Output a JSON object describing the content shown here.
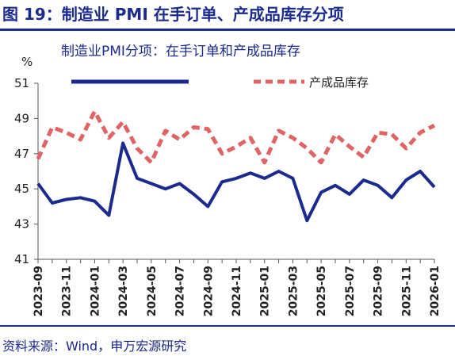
{
  "header": {
    "title": "图 19：制造业 PMI 在手订单、产成品库存分项",
    "source": "资料来源：Wind，申万宏源研究"
  },
  "colors": {
    "primary": "#1b2a8c",
    "dashed": "#e06366"
  },
  "chart_data": {
    "type": "line",
    "title": "制造业PMI分项：在手订单和产成品库存",
    "ylabel": "%",
    "ylim": [
      41,
      51
    ],
    "yticks": [
      41,
      43,
      45,
      47,
      49,
      51
    ],
    "grid": false,
    "legend_position": "top",
    "x": [
      "2023-09",
      "2023-10",
      "2023-11",
      "2023-12",
      "2024-01",
      "2024-02",
      "2024-03",
      "2024-04",
      "2024-05",
      "2024-06",
      "2024-07",
      "2024-08",
      "2024-09",
      "2024-10",
      "2024-11",
      "2024-12",
      "2025-01",
      "2025-02",
      "2025-03",
      "2025-04",
      "2025-05",
      "2025-06",
      "2025-07",
      "2025-08",
      "2025-09",
      "2025-10",
      "2025-11",
      "2025-12",
      "2026-01"
    ],
    "xticks": [
      "2023-09",
      "2023-11",
      "2024-01",
      "2024-03",
      "2024-05",
      "2024-07",
      "2024-09",
      "2024-11",
      "2025-01",
      "2025-03",
      "2025-05",
      "2025-07",
      "2025-09",
      "2025-11",
      "2026-01"
    ],
    "series": [
      {
        "name": "",
        "style": "solid",
        "color": "#1b2a8c",
        "values": [
          45.3,
          44.2,
          44.4,
          44.5,
          44.3,
          43.5,
          47.6,
          45.6,
          45.3,
          45.0,
          45.3,
          44.7,
          44.0,
          45.4,
          45.6,
          45.9,
          45.6,
          46.0,
          45.6,
          43.2,
          44.8,
          45.2,
          44.7,
          45.5,
          45.2,
          44.5,
          45.5,
          46.0,
          45.1
        ]
      },
      {
        "name": "产成品库存",
        "style": "dashed",
        "color": "#e06366",
        "values": [
          46.7,
          48.5,
          48.2,
          47.8,
          49.4,
          47.9,
          48.8,
          47.3,
          46.5,
          48.3,
          47.8,
          48.5,
          48.4,
          47.0,
          47.4,
          47.9,
          46.5,
          48.3,
          47.9,
          47.3,
          46.5,
          48.1,
          47.4,
          46.8,
          48.2,
          48.1,
          47.3,
          48.2,
          48.6
        ]
      }
    ]
  }
}
